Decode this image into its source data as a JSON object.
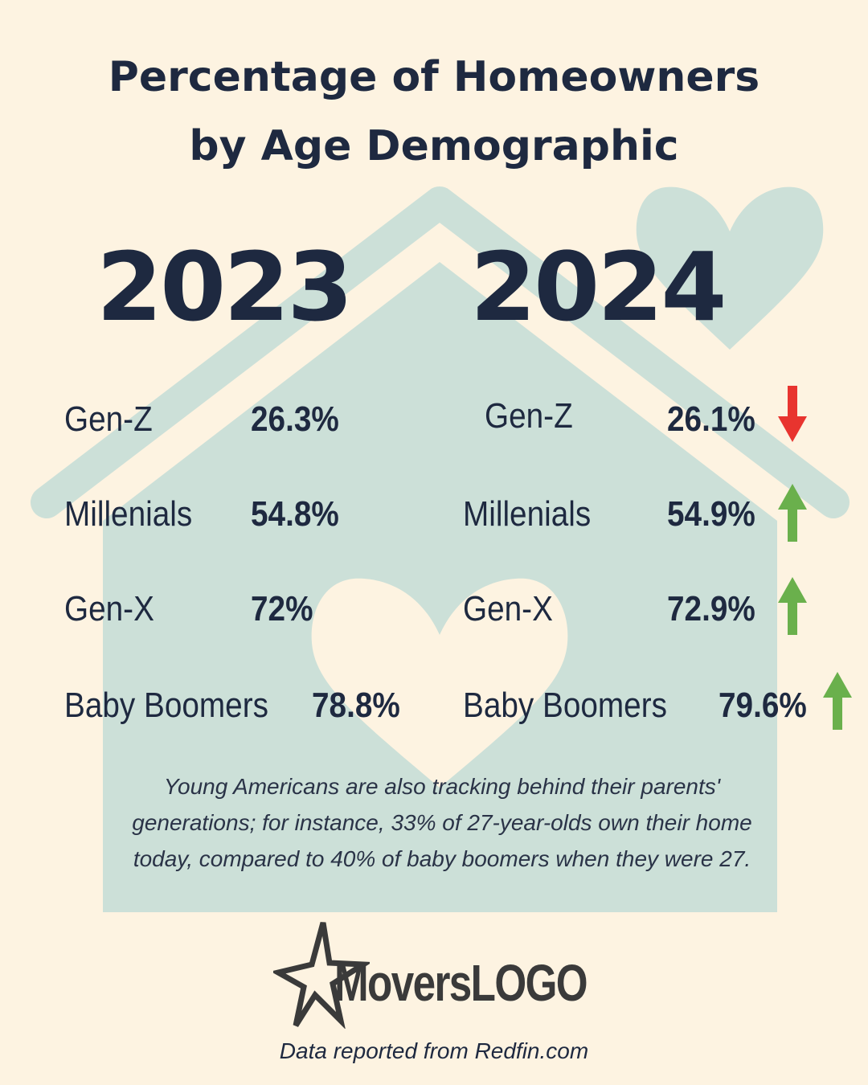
{
  "title": {
    "line1": "Percentage of Homeowners",
    "line2": "by Age Demographic"
  },
  "colors": {
    "background": "#fdf3e1",
    "house": "#cce0d8",
    "text": "#1e2940",
    "arrow_up": "#6ab04c",
    "arrow_down": "#e8342f"
  },
  "years": {
    "left": "2023",
    "right": "2024"
  },
  "data_2023": [
    {
      "label": "Gen-Z",
      "value": "26.3%"
    },
    {
      "label": "Millenials",
      "value": "54.8%"
    },
    {
      "label": "Gen-X",
      "value": "72%"
    },
    {
      "label": "Baby Boomers",
      "value": "78.8%"
    }
  ],
  "data_2024": [
    {
      "label": "Gen-Z",
      "value": "26.1%",
      "trend": "down",
      "icon": "arrow-down-icon"
    },
    {
      "label": "Millenials",
      "value": "54.9%",
      "trend": "up",
      "icon": "arrow-up-icon"
    },
    {
      "label": "Gen-X",
      "value": "72.9%",
      "trend": "up",
      "icon": "arrow-up-icon"
    },
    {
      "label": "Baby Boomers",
      "value": "79.6%",
      "trend": "up",
      "icon": "arrow-up-icon"
    }
  ],
  "note": {
    "line1": "Young Americans are also tracking behind their parents'",
    "line2": "generations; for instance, 33% of 27-year-olds own their home",
    "line3": "today, compared to 40% of baby boomers when they were 27."
  },
  "logo": {
    "text": "MoversLOGO",
    "icon": "star-icon"
  },
  "source": "Data reported from Redfin.com"
}
